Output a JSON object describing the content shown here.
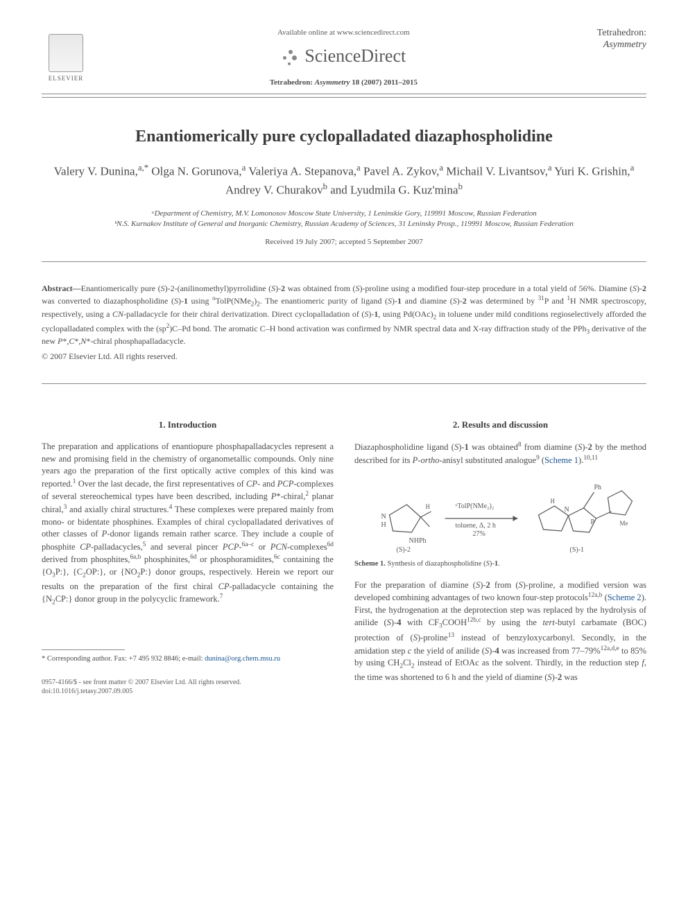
{
  "header": {
    "publisher": "ELSEVIER",
    "available_text": "Available online at www.sciencedirect.com",
    "sciencedirect": "ScienceDirect",
    "journal_ref": "Tetrahedron: Asymmetry 18 (2007) 2011–2015",
    "journal_name_line1": "Tetrahedron:",
    "journal_name_line2": "Asymmetry"
  },
  "article": {
    "title": "Enantiomerically pure cyclopalladated diazaphospholidine",
    "authors_html": "Valery V. Dunina,<sup>a,*</sup> Olga N. Gorunova,<sup>a</sup> Valeriya A. Stepanova,<sup>a</sup> Pavel A. Zykov,<sup>a</sup> Michail V. Livantsov,<sup>a</sup> Yuri K. Grishin,<sup>a</sup> Andrey V. Churakov<sup>b</sup> and Lyudmila G. Kuz'mina<sup>b</sup>",
    "affiliations": [
      "ᵃDepartment of Chemistry, M.V. Lomonosov Moscow State University, 1 Leninskie Gory, 119991 Moscow, Russian Federation",
      "ᵇN.S. Kurnakov Institute of General and Inorganic Chemistry, Russian Academy of Sciences, 31 Leninsky Prosp., 119991 Moscow, Russian Federation"
    ],
    "dates": "Received 19 July 2007; accepted 5 September 2007"
  },
  "abstract": {
    "label": "Abstract—",
    "text_html": "Enantiomerically pure (<i>S</i>)-2-(anilinomethyl)pyrrolidine (<i>S</i>)-<b>2</b> was obtained from (<i>S</i>)-proline using a modified four-step procedure in a total yield of 56%. Diamine (<i>S</i>)-<b>2</b> was converted to diazaphospholidine (<i>S</i>)-<b>1</b> using <sup>o</sup>TolP(NMe<sub>2</sub>)<sub>2</sub>. The enantiomeric purity of ligand (<i>S</i>)-<b>1</b> and diamine (<i>S</i>)-<b>2</b> was determined by <sup>31</sup>P and <sup>1</sup>H NMR spectroscopy, respectively, using a <i>CN</i>-palladacycle for their chiral derivatization. Direct cyclopalladation of (<i>S</i>)-<b>1</b>, using Pd(OAc)<sub>2</sub> in toluene under mild conditions regioselectively afforded the cyclopalladated complex with the (sp<sup>2</sup>)C–Pd bond. The aromatic C–H bond activation was confirmed by NMR spectral data and X-ray diffraction study of the PPh<sub>3</sub> derivative of the new <i>P</i>*,<i>C</i>*,<i>N</i>*-chiral phosphapalladacycle.",
    "copyright": "© 2007 Elsevier Ltd. All rights reserved."
  },
  "sections": {
    "intro_heading": "1. Introduction",
    "intro_body_html": "The preparation and applications of enantiopure phosphapalladacycles represent a new and promising field in the chemistry of organometallic compounds. Only nine years ago the preparation of the first optically active complex of this kind was reported.<sup>1</sup> Over the last decade, the first representatives of <i>CP</i>- and <i>PCP</i>-complexes of several stereochemical types have been described, including <i>P</i>*-chiral,<sup>2</sup> planar chiral,<sup>3</sup> and axially chiral structures.<sup>4</sup> These complexes were prepared mainly from mono- or bidentate phosphines. Examples of chiral cyclopalladated derivatives of other classes of <i>P</i>-donor ligands remain rather scarce. They include a couple of phosphite <i>CP</i>-palladacycles,<sup>5</sup> and several pincer <i>PCP</i>-<sup>6a–c</sup> or <i>PCN</i>-complexes<sup>6d</sup> derived from phosphites,<sup>6a,b</sup> phosphinites,<sup>6d</sup> or phosphoramidites,<sup>6c</sup> containing the {O<sub>3</sub>P:}, {C<sub>2</sub>OP:}, or {NO<sub>2</sub>P:} donor groups, respectively. Herein we report our results on the preparation of the first chiral <i>CP</i>-palladacycle containing the {N<sub>2</sub>CP:} donor group in the polycyclic framework.<sup>7</sup>",
    "results_heading": "2. Results and discussion",
    "results_para1_html": "Diazaphospholidine ligand (<i>S</i>)-<b>1</b> was obtained<sup>8</sup> from diamine (<i>S</i>)-<b>2</b> by the method described for its <i>P-ortho</i>-anisyl substituted analogue<sup>9</sup> (<span class='scheme-link'>Scheme 1</span>).<sup>10,11</sup>",
    "results_para2_html": "For the preparation of diamine (<i>S</i>)-<b>2</b> from (<i>S</i>)-proline, a modified version was developed combining advantages of two known four-step protocols<sup>12a,b</sup> (<span class='scheme-link'>Scheme 2</span>). First, the hydrogenation at the deprotection step was replaced by the hydrolysis of anilide (<i>S</i>)-<b>4</b> with CF<sub>3</sub>COOH<sup>12b,c</sup> by using the <i>tert</i>-butyl carbamate (BOC) protection of (<i>S</i>)-proline<sup>13</sup> instead of benzyloxycarbonyl. Secondly, in the amidation step <i>c</i> the yield of anilide (<i>S</i>)-<b>4</b> was increased from 77–79%<sup>12a,d,e</sup> to 85% by using CH<sub>2</sub>Cl<sub>2</sub> instead of EtOAc as the solvent. Thirdly, in the reduction step <i>f</i>, the time was shortened to 6 h and the yield of diamine (<i>S</i>)-<b>2</b> was"
  },
  "scheme1": {
    "reagent": "ᵒTolP(NMe₂)₂",
    "conditions": "toluene, Δ, 2 h",
    "yield": "27%",
    "left_label": "(S)-2",
    "right_label": "(S)-1",
    "caption_html": "<b>Scheme 1.</b> Synthesis of diazaphospholidine (<i>S</i>)-<b>1</b>."
  },
  "footnote": {
    "text": "* Corresponding author. Fax: +7 495 932 8846; e-mail: ",
    "email": "dunina@org.chem.msu.ru"
  },
  "footer": {
    "line1": "0957-4166/$ - see front matter © 2007 Elsevier Ltd. All rights reserved.",
    "line2": "doi:10.1016/j.tetasy.2007.09.005"
  },
  "colors": {
    "text": "#4a4a4a",
    "heading": "#3a3a3a",
    "link": "#1a5490",
    "rule": "#888888",
    "background": "#ffffff"
  }
}
